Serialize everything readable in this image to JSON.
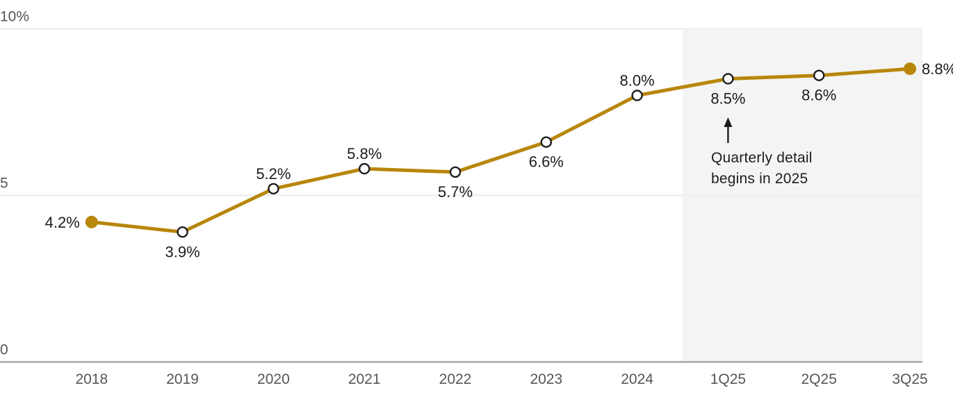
{
  "chart_data": {
    "type": "line",
    "title": "",
    "xlabel": "",
    "ylabel": "",
    "categories": [
      "2018",
      "2019",
      "2020",
      "2021",
      "2022",
      "2023",
      "2024",
      "1Q25",
      "2Q25",
      "3Q25"
    ],
    "values": [
      4.2,
      3.9,
      5.2,
      5.8,
      5.7,
      6.6,
      8.0,
      8.5,
      8.6,
      8.8
    ],
    "point_labels": [
      "4.2%",
      "3.9%",
      "5.2%",
      "5.8%",
      "5.7%",
      "6.6%",
      "8.0%",
      "8.5%",
      "8.6%",
      "8.8%"
    ],
    "point_label_positions": [
      "left",
      "below",
      "above",
      "above",
      "below",
      "below",
      "above",
      "below",
      "below",
      "right"
    ],
    "point_marker_styles": [
      "filled",
      "open",
      "open",
      "open",
      "open",
      "open",
      "open",
      "open",
      "open",
      "filled"
    ],
    "ylim": [
      0,
      10
    ],
    "y_ticks": [
      {
        "value": 0,
        "label": "0"
      },
      {
        "value": 5,
        "label": "5"
      },
      {
        "value": 10,
        "label": "10%"
      }
    ],
    "grid": "horizontal",
    "legend_position": "none",
    "shaded_region": {
      "starts_between": [
        "2024",
        "1Q25"
      ],
      "ends": "right edge of plot"
    },
    "annotation": {
      "lines": [
        "Quarterly detail",
        "begins in 2025"
      ],
      "arrow_direction": "up",
      "arrow_points_to_category": "1Q25"
    }
  },
  "colors": {
    "line": "#B8860B",
    "marker_fill_open": "#ffffff",
    "marker_stroke": "#1c1c1c",
    "shaded_region": "#F4F4F4",
    "gridline": "#EFEFEF",
    "axis_line": "#A6A7A9",
    "tick_text": "#54565B",
    "data_label_text": "#1c1c1c",
    "annotation_arrow": "#1c1c1c"
  }
}
